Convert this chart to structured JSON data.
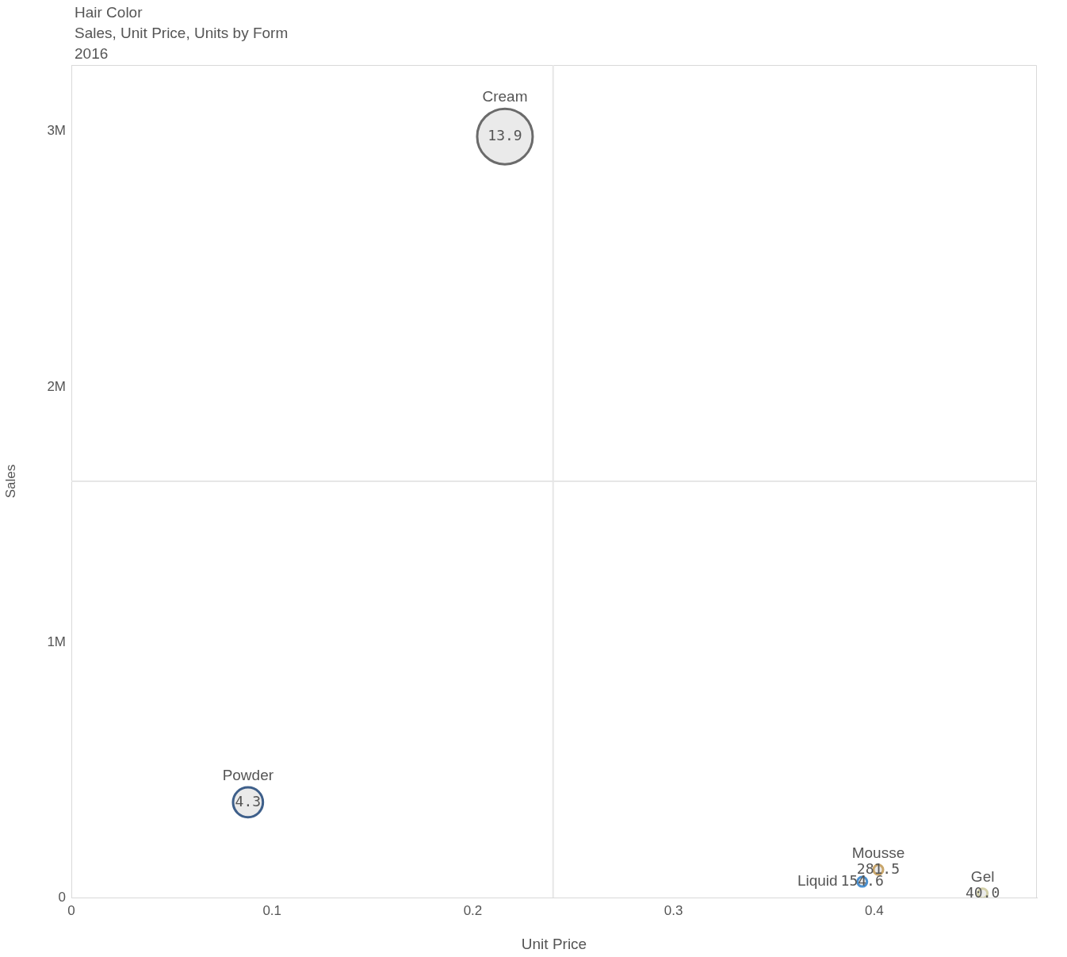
{
  "chart_data": {
    "type": "bubble",
    "title": "Hair Color",
    "subtitle": "Sales, Unit Price, Units by Form",
    "annotations": [
      "2016",
      {
        "text": "13.9",
        "x": 0.216,
        "y": 2980000
      },
      {
        "text": "4.3",
        "x": 0.088,
        "y": 373000
      },
      {
        "text": "281.5",
        "x": 0.402,
        "y": 109000
      },
      {
        "text": "154.6",
        "x": 0.394,
        "y": 62000
      },
      {
        "text": "40.0",
        "x": 0.454,
        "y": 16000
      }
    ],
    "xlabel": "Unit Price",
    "ylabel": "Sales",
    "xlim": [
      0,
      0.481
    ],
    "xticks": [
      0,
      0.1,
      0.2,
      0.3,
      0.4
    ],
    "ylim": [
      0,
      3260000
    ],
    "yticks": [
      {
        "value": 0,
        "label": "0"
      },
      {
        "value": 1000000,
        "label": "1M"
      },
      {
        "value": 2000000,
        "label": "2M"
      },
      {
        "value": 3000000,
        "label": "3M"
      }
    ],
    "grid": false,
    "legend": false,
    "ref_lines": [
      {
        "axis": "x",
        "value": 0.24,
        "color": "#e6e6e6"
      },
      {
        "axis": "y",
        "value": 1630000,
        "color": "#e6e6e6"
      }
    ],
    "series": [
      {
        "name": "Cream",
        "color": "#6b6b6b",
        "x": [
          0.216
        ],
        "values": [
          2980000
        ],
        "sizes": [
          1
        ]
      },
      {
        "name": "Powder",
        "color": "#3e5f8a",
        "x": [
          0.088
        ],
        "values": [
          373000
        ],
        "sizes": [
          0.29
        ]
      },
      {
        "name": "Mousse",
        "color": "#c9a66b",
        "x": [
          0.402
        ],
        "values": [
          109000
        ],
        "sizes": [
          0.03
        ]
      },
      {
        "name": "Liquid",
        "color": "#4a90d0",
        "x": [
          0.394
        ],
        "values": [
          62000
        ],
        "sizes": [
          0.03
        ]
      },
      {
        "name": "Gel",
        "color": "#d2cfa8",
        "x": [
          0.454
        ],
        "values": [
          16000
        ],
        "sizes": [
          0.03
        ]
      }
    ]
  }
}
